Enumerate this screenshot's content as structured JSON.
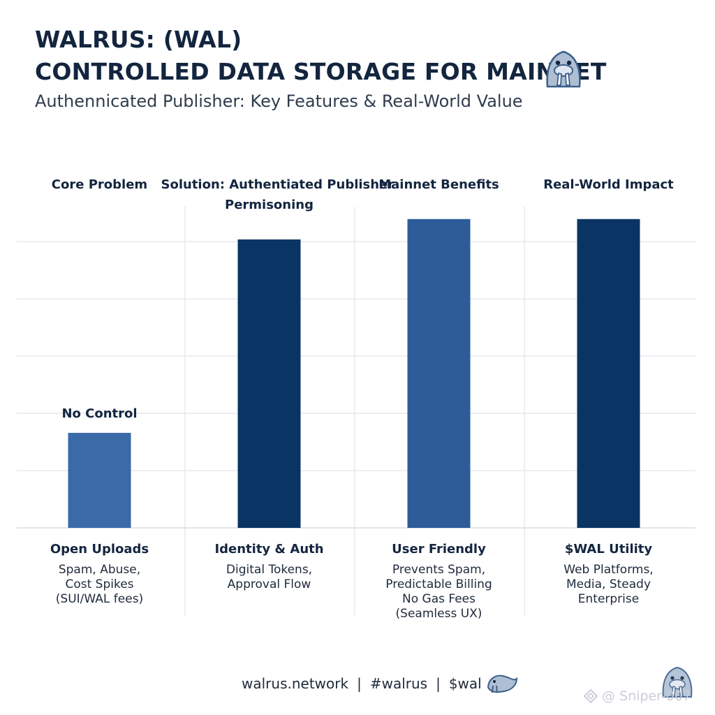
{
  "header": {
    "title_line1": "WALRUS: (WAL)",
    "title_line2": "CONTROLLED DATA STORAGE FOR MAINNET",
    "subtitle": "Authennicated Publisher: Key Features & Real-World Value"
  },
  "chart_data": {
    "type": "bar",
    "title": "",
    "xlabel": "",
    "ylabel": "",
    "grid": true,
    "ylim": [
      0,
      100
    ],
    "column_headers": [
      [
        "Core Problem"
      ],
      [
        "Solution: Authentiated Publisher",
        "Permisoning"
      ],
      [
        "Mainnet Benefits"
      ],
      [
        "Real-World Impact"
      ]
    ],
    "bar_labels": [
      "No Control",
      "",
      "",
      ""
    ],
    "categories": [
      "Open Uploads",
      "Identity & Auth",
      "User Friendly",
      "$WAL Utility"
    ],
    "descriptions": [
      [
        "Spam, Abuse,",
        "Cost Spikes",
        "(SUI/WAL fees)"
      ],
      [
        "Digital Tokens,",
        "Approval Flow"
      ],
      [
        "Prevents Spam,",
        "Predictable Billing",
        "No Gas Fees",
        "(Seamless UX)"
      ],
      [
        "Web Platforms,",
        "Media, Steady",
        "Enterprise"
      ]
    ],
    "values": [
      28,
      85,
      91,
      91
    ],
    "colors": [
      "#3a6aa8",
      "#0a3463",
      "#2d5c98",
      "#0a3463"
    ]
  },
  "footer": {
    "site": "walrus.network",
    "hashtag": "#walrus",
    "ticker": "$wal",
    "watermark": "@ Sniper-007"
  },
  "icons": [
    "walrus-icon",
    "walrus-small-icon",
    "walrus-corner-icon",
    "watermark-icon"
  ]
}
